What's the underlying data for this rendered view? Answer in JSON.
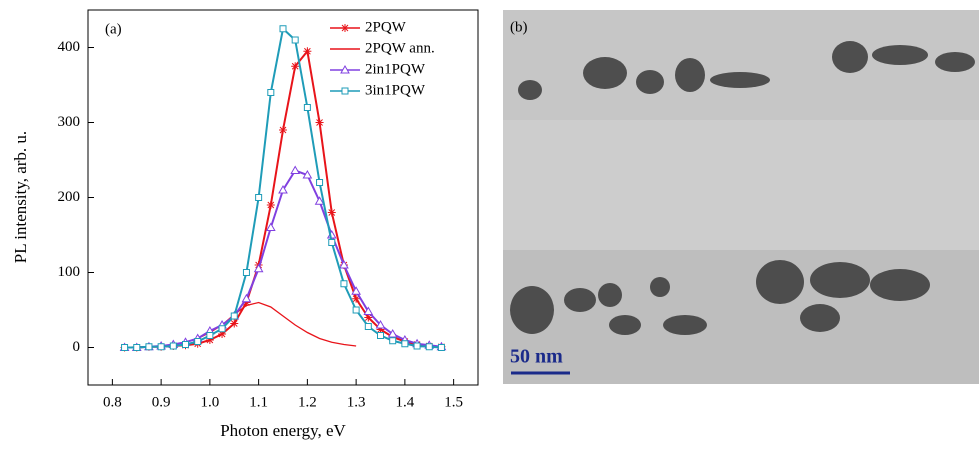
{
  "chart_data": {
    "type": "line",
    "panel_label": "(a)",
    "xlabel": "Photon energy, eV",
    "ylabel": "PL intensity, arb. u.",
    "x": [
      0.825,
      0.85,
      0.875,
      0.9,
      0.925,
      0.95,
      0.975,
      1.0,
      1.025,
      1.05,
      1.075,
      1.1,
      1.125,
      1.15,
      1.175,
      1.2,
      1.225,
      1.25,
      1.275,
      1.3,
      1.325,
      1.35,
      1.375,
      1.4,
      1.425,
      1.45,
      1.475
    ],
    "series": [
      {
        "name": "2PQW",
        "color": "#e8141a",
        "marker": "star",
        "values": [
          0,
          0,
          1,
          1,
          2,
          3,
          5,
          10,
          18,
          32,
          60,
          110,
          190,
          290,
          375,
          395,
          300,
          180,
          110,
          65,
          40,
          24,
          14,
          8,
          4,
          2,
          1
        ]
      },
      {
        "name": "2PQW ann.",
        "color": "#e8141a",
        "marker": "none",
        "values": [
          0,
          1,
          1,
          2,
          4,
          7,
          12,
          20,
          30,
          44,
          56,
          60,
          54,
          42,
          30,
          20,
          12,
          7,
          4,
          2,
          null,
          null,
          null,
          null,
          null,
          null,
          null
        ]
      },
      {
        "name": "2in1PQW",
        "color": "#8040e0",
        "marker": "triangle",
        "values": [
          0,
          0,
          1,
          2,
          4,
          7,
          12,
          22,
          30,
          42,
          65,
          105,
          160,
          210,
          236,
          230,
          195,
          150,
          110,
          75,
          48,
          30,
          18,
          10,
          5,
          3,
          1
        ]
      },
      {
        "name": "3in1PQW",
        "color": "#1f9cb8",
        "marker": "square",
        "values": [
          0,
          0,
          1,
          1,
          2,
          4,
          8,
          16,
          25,
          42,
          100,
          200,
          340,
          425,
          410,
          320,
          220,
          140,
          85,
          50,
          28,
          16,
          9,
          5,
          2,
          1,
          0
        ]
      }
    ],
    "xlim": [
      0.75,
      1.55
    ],
    "ylim": [
      -50,
      450
    ],
    "xticks": [
      0.8,
      0.9,
      {
        "value": 1,
        "label": "1.0"
      },
      1.1,
      1.2,
      1.3,
      1.4,
      1.5
    ],
    "yticks": [
      0,
      100,
      200,
      300,
      400
    ],
    "legend": "upper right"
  },
  "image_panel": {
    "label": "(b)",
    "scale_bar": "50 nm"
  }
}
